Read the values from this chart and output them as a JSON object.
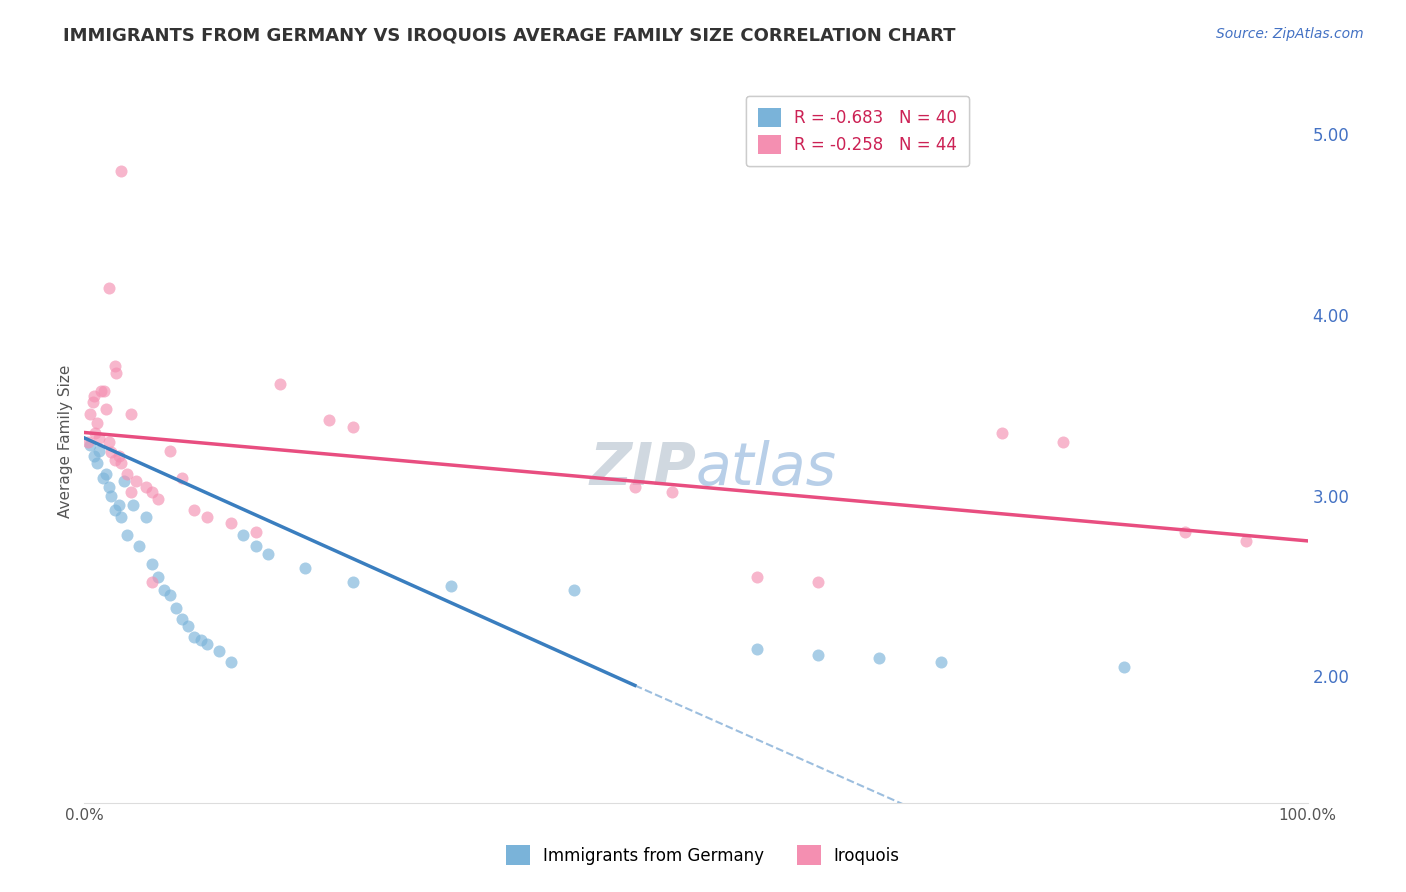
{
  "title": "IMMIGRANTS FROM GERMANY VS IROQUOIS AVERAGE FAMILY SIZE CORRELATION CHART",
  "source": "Source: ZipAtlas.com",
  "ylabel": "Average Family Size",
  "right_yticks": [
    2.0,
    3.0,
    4.0,
    5.0
  ],
  "legend_entries": [
    {
      "label": "R = -0.683   N = 40"
    },
    {
      "label": "R = -0.258   N = 44"
    }
  ],
  "legend_labels": [
    "Immigrants from Germany",
    "Iroquois"
  ],
  "watermark": "ZIPatlas",
  "blue_color": "#7ab3d9",
  "pink_color": "#f48fb1",
  "blue_scatter": [
    [
      0.5,
      3.28
    ],
    [
      0.8,
      3.22
    ],
    [
      1.0,
      3.18
    ],
    [
      1.2,
      3.25
    ],
    [
      1.5,
      3.1
    ],
    [
      1.8,
      3.12
    ],
    [
      2.0,
      3.05
    ],
    [
      2.2,
      3.0
    ],
    [
      2.5,
      2.92
    ],
    [
      2.8,
      2.95
    ],
    [
      3.0,
      2.88
    ],
    [
      3.2,
      3.08
    ],
    [
      3.5,
      2.78
    ],
    [
      4.0,
      2.95
    ],
    [
      4.5,
      2.72
    ],
    [
      5.0,
      2.88
    ],
    [
      5.5,
      2.62
    ],
    [
      6.0,
      2.55
    ],
    [
      6.5,
      2.48
    ],
    [
      7.0,
      2.45
    ],
    [
      7.5,
      2.38
    ],
    [
      8.0,
      2.32
    ],
    [
      8.5,
      2.28
    ],
    [
      9.0,
      2.22
    ],
    [
      9.5,
      2.2
    ],
    [
      10.0,
      2.18
    ],
    [
      11.0,
      2.14
    ],
    [
      12.0,
      2.08
    ],
    [
      13.0,
      2.78
    ],
    [
      14.0,
      2.72
    ],
    [
      15.0,
      2.68
    ],
    [
      18.0,
      2.6
    ],
    [
      22.0,
      2.52
    ],
    [
      30.0,
      2.5
    ],
    [
      40.0,
      2.48
    ],
    [
      55.0,
      2.15
    ],
    [
      60.0,
      2.12
    ],
    [
      65.0,
      2.1
    ],
    [
      70.0,
      2.08
    ],
    [
      85.0,
      2.05
    ]
  ],
  "pink_scatter": [
    [
      0.3,
      3.3
    ],
    [
      0.5,
      3.45
    ],
    [
      0.7,
      3.52
    ],
    [
      0.9,
      3.35
    ],
    [
      1.0,
      3.4
    ],
    [
      1.2,
      3.32
    ],
    [
      1.4,
      3.58
    ],
    [
      1.6,
      3.58
    ],
    [
      1.8,
      3.48
    ],
    [
      2.0,
      3.3
    ],
    [
      2.2,
      3.24
    ],
    [
      2.5,
      3.2
    ],
    [
      2.8,
      3.22
    ],
    [
      3.0,
      3.18
    ],
    [
      3.5,
      3.12
    ],
    [
      3.8,
      3.45
    ],
    [
      4.2,
      3.08
    ],
    [
      5.0,
      3.05
    ],
    [
      5.5,
      3.02
    ],
    [
      6.0,
      2.98
    ],
    [
      7.0,
      3.25
    ],
    [
      8.0,
      3.1
    ],
    [
      9.0,
      2.92
    ],
    [
      10.0,
      2.88
    ],
    [
      12.0,
      2.85
    ],
    [
      14.0,
      2.8
    ],
    [
      16.0,
      3.62
    ],
    [
      20.0,
      3.42
    ],
    [
      22.0,
      3.38
    ],
    [
      45.0,
      3.05
    ],
    [
      48.0,
      3.02
    ],
    [
      55.0,
      2.55
    ],
    [
      60.0,
      2.52
    ],
    [
      75.0,
      3.35
    ],
    [
      80.0,
      3.3
    ],
    [
      90.0,
      2.8
    ],
    [
      95.0,
      2.75
    ],
    [
      3.0,
      4.8
    ],
    [
      2.0,
      4.15
    ],
    [
      2.5,
      3.72
    ],
    [
      2.6,
      3.68
    ],
    [
      0.8,
      3.55
    ],
    [
      3.8,
      3.02
    ],
    [
      5.5,
      2.52
    ]
  ],
  "blue_line": [
    [
      0,
      3.32
    ],
    [
      45,
      1.95
    ]
  ],
  "blue_dash_line": [
    [
      45,
      1.95
    ],
    [
      100,
      0.3
    ]
  ],
  "pink_line": [
    [
      0,
      3.35
    ],
    [
      100,
      2.75
    ]
  ],
  "xlim": [
    0,
    100
  ],
  "ylim": [
    1.3,
    5.3
  ],
  "grid_color": "#cccccc",
  "background_color": "#ffffff",
  "title_fontsize": 13,
  "source_fontsize": 10,
  "watermark_fontsize": 42,
  "watermark_color": "#ccd8e8",
  "scatter_size": 75,
  "scatter_alpha": 0.65,
  "right_axis_color": "#4472c4"
}
